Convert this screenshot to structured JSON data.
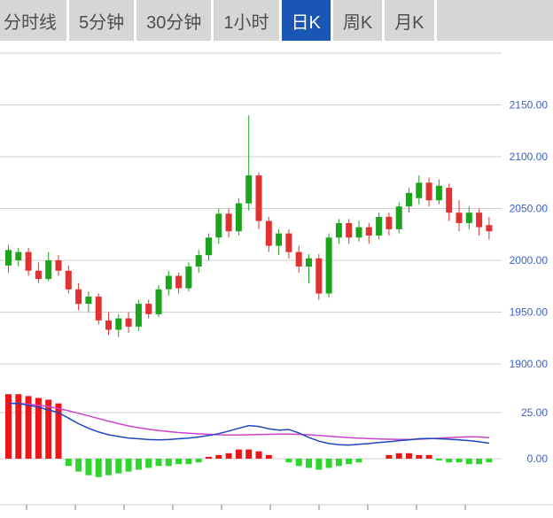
{
  "tabs": {
    "items": [
      {
        "label": "分时线",
        "active": false
      },
      {
        "label": "5分钟",
        "active": false
      },
      {
        "label": "30分钟",
        "active": false
      },
      {
        "label": "1小时",
        "active": false
      },
      {
        "label": "日K",
        "active": true
      },
      {
        "label": "周K",
        "active": false
      },
      {
        "label": "月K",
        "active": false
      }
    ]
  },
  "colors": {
    "tab_bg": "#d6d6d6",
    "tab_text": "#4f4f4f",
    "active_tab_bg": "#1a56b4",
    "active_tab_text": "#ffffff",
    "grid": "#cfcfcf",
    "axis_label": "#3a5fc8",
    "up": "#1ca41c",
    "down": "#e03232",
    "macd_positive": "#ee1515",
    "macd_negative": "#2fd42f",
    "dif_line": "#2244bb",
    "dea_line": "#cc44cc",
    "tick": "#808080"
  },
  "chart_data": [
    {
      "type": "candlestick",
      "title": "",
      "timeframe_selected": "日K",
      "y_axis_labels": [
        "2150.00",
        "2100.00",
        "2050.00",
        "2000.00",
        "1950.00",
        "1900.00"
      ],
      "grid_top_price": 2200,
      "grid_step": 50,
      "ylim": [
        1880,
        2200
      ],
      "candles_ohlc": [
        [
          1995,
          2015,
          1988,
          2010
        ],
        [
          2000,
          2012,
          1994,
          2008
        ],
        [
          2008,
          2012,
          1985,
          1990
        ],
        [
          1990,
          1998,
          1978,
          1982
        ],
        [
          1982,
          2008,
          1980,
          2000
        ],
        [
          2000,
          2005,
          1985,
          1990
        ],
        [
          1990,
          1995,
          1968,
          1972
        ],
        [
          1972,
          1978,
          1952,
          1958
        ],
        [
          1958,
          1970,
          1950,
          1965
        ],
        [
          1965,
          1968,
          1938,
          1942
        ],
        [
          1942,
          1950,
          1928,
          1933
        ],
        [
          1933,
          1948,
          1926,
          1944
        ],
        [
          1944,
          1950,
          1930,
          1936
        ],
        [
          1936,
          1962,
          1932,
          1958
        ],
        [
          1958,
          1962,
          1944,
          1948
        ],
        [
          1948,
          1976,
          1945,
          1972
        ],
        [
          1972,
          1990,
          1966,
          1985
        ],
        [
          1985,
          1988,
          1968,
          1973
        ],
        [
          1973,
          1998,
          1970,
          1994
        ],
        [
          1994,
          2010,
          1988,
          2005
        ],
        [
          2005,
          2026,
          2000,
          2022
        ],
        [
          2022,
          2050,
          2016,
          2045
        ],
        [
          2045,
          2050,
          2022,
          2028
        ],
        [
          2028,
          2060,
          2024,
          2055
        ],
        [
          2055,
          2140,
          2048,
          2082
        ],
        [
          2082,
          2085,
          2030,
          2038
        ],
        [
          2038,
          2042,
          2008,
          2014
        ],
        [
          2014,
          2030,
          2005,
          2026
        ],
        [
          2026,
          2030,
          2002,
          2008
        ],
        [
          2008,
          2014,
          1988,
          1994
        ],
        [
          1994,
          2006,
          1978,
          2002
        ],
        [
          2002,
          2006,
          1962,
          1968
        ],
        [
          1968,
          2026,
          1964,
          2022
        ],
        [
          2022,
          2040,
          2016,
          2036
        ],
        [
          2036,
          2040,
          2016,
          2022
        ],
        [
          2022,
          2038,
          2018,
          2032
        ],
        [
          2032,
          2036,
          2016,
          2024
        ],
        [
          2024,
          2046,
          2020,
          2042
        ],
        [
          2042,
          2046,
          2024,
          2030
        ],
        [
          2030,
          2056,
          2026,
          2052
        ],
        [
          2052,
          2070,
          2046,
          2065
        ],
        [
          2060,
          2082,
          2054,
          2075
        ],
        [
          2075,
          2080,
          2052,
          2058
        ],
        [
          2058,
          2078,
          2054,
          2072
        ],
        [
          2070,
          2074,
          2038,
          2046
        ],
        [
          2046,
          2058,
          2028,
          2036
        ],
        [
          2036,
          2052,
          2030,
          2046
        ],
        [
          2046,
          2050,
          2024,
          2032
        ],
        [
          2034,
          2042,
          2020,
          2028
        ]
      ]
    },
    {
      "type": "macd",
      "y_axis_labels": [
        "25.00",
        "0.00"
      ],
      "grid_values": [
        25,
        0
      ],
      "histogram": [
        35,
        35,
        34,
        33,
        32,
        30,
        -4,
        -7,
        -9,
        -10,
        -9,
        -8,
        -7,
        -6,
        -5,
        -4,
        -4,
        -3,
        -3,
        -2,
        1,
        2,
        3,
        5,
        5,
        4,
        2,
        0,
        -2,
        -4,
        -5,
        -6,
        -5,
        -4,
        -3,
        -2,
        0,
        0,
        2,
        3,
        3,
        2,
        2,
        -1,
        -2,
        -2,
        -3,
        -3,
        -2
      ],
      "dif": [
        30,
        30,
        29,
        28,
        26.5,
        25,
        22,
        19,
        16.5,
        14.5,
        13,
        12,
        11.2,
        10.8,
        10.4,
        10.2,
        10.4,
        10.8,
        11.2,
        11.8,
        12.6,
        13.6,
        15,
        16.5,
        18,
        17.5,
        16.2,
        15.5,
        15.8,
        14,
        11.5,
        9.5,
        8.2,
        7.6,
        7.4,
        7.8,
        8.2,
        8.8,
        9.2,
        9.8,
        10.2,
        10.8,
        11,
        10.8,
        10.6,
        10.2,
        9.8,
        9.2,
        8.4
      ],
      "dea": [
        30,
        30,
        29.6,
        29,
        28.2,
        27.2,
        26,
        24.6,
        23.2,
        21.8,
        20.4,
        19,
        17.8,
        16.8,
        16,
        15.3,
        14.7,
        14.2,
        13.8,
        13.5,
        13.2,
        13,
        12.9,
        12.9,
        13,
        13.1,
        13.2,
        13.3,
        13.3,
        13.2,
        13,
        12.6,
        12.2,
        11.8,
        11.4,
        11.1,
        10.9,
        10.7,
        10.6,
        10.5,
        10.5,
        10.6,
        10.8,
        11.1,
        11.4,
        11.7,
        11.9,
        11.8,
        11.4
      ]
    }
  ]
}
